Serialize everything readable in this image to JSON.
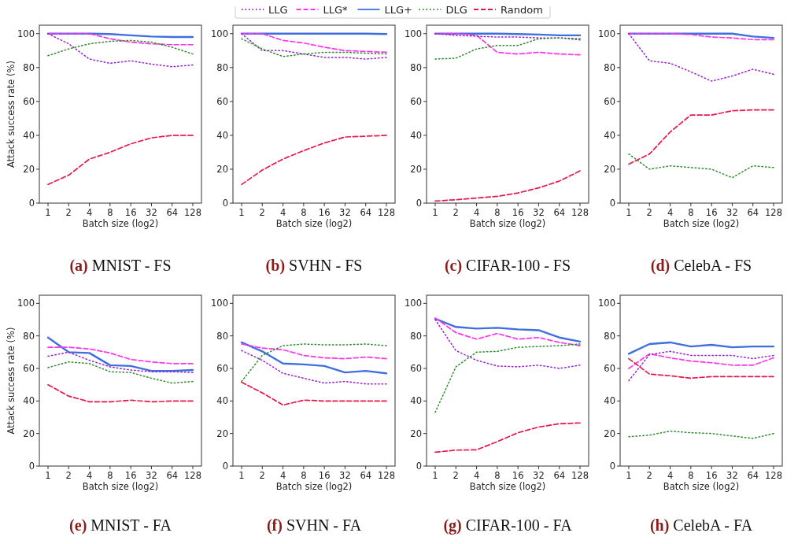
{
  "chart_data": [
    {
      "type": "line",
      "title": "(a) MNIST - FS",
      "xlabel": "Batch size (log2)",
      "ylabel": "Attack success rate (%)",
      "categories": [
        "1",
        "2",
        "4",
        "8",
        "16",
        "32",
        "64",
        "128"
      ],
      "ylim": [
        0,
        105
      ],
      "yticks": [
        0,
        20,
        40,
        60,
        80,
        100
      ],
      "legend": "top",
      "series": [
        {
          "name": "LLG",
          "color": "#9b1fd0",
          "line_style": "dotted",
          "values": [
            100,
            94,
            85,
            82.5,
            84,
            82,
            80.5,
            81.5
          ]
        },
        {
          "name": "LLG*",
          "color": "#ff33ee",
          "line_style": "dashed",
          "values": [
            100,
            100,
            100,
            97,
            95,
            94,
            93.5,
            93.5
          ]
        },
        {
          "name": "LLG+",
          "color": "#3f6fdf",
          "line_style": "solid",
          "values": [
            100,
            100,
            100,
            99.8,
            99,
            98.3,
            98,
            98
          ]
        },
        {
          "name": "DLG",
          "color": "#2e8b2e",
          "line_style": "dotted",
          "values": [
            87,
            91,
            94,
            95.5,
            96,
            95,
            92,
            88
          ]
        },
        {
          "name": "Random",
          "color": "#e8174a",
          "line_style": "dashed",
          "values": [
            11,
            16.5,
            26,
            30,
            35,
            38.5,
            40,
            40
          ]
        }
      ]
    },
    {
      "type": "line",
      "title": "(b) SVHN - FS",
      "xlabel": "Batch size (log2)",
      "categories": [
        "1",
        "2",
        "4",
        "8",
        "16",
        "32",
        "64",
        "128"
      ],
      "ylim": [
        0,
        105
      ],
      "yticks": [
        0,
        20,
        40,
        60,
        80,
        100
      ],
      "series": [
        {
          "name": "LLG",
          "color": "#9b1fd0",
          "line_style": "dotted",
          "values": [
            100,
            90,
            90,
            88,
            86,
            86,
            85,
            86
          ]
        },
        {
          "name": "LLG*",
          "color": "#ff33ee",
          "line_style": "dashed",
          "values": [
            100,
            100,
            96,
            94.5,
            92,
            90,
            89.5,
            89
          ]
        },
        {
          "name": "LLG+",
          "color": "#3f6fdf",
          "line_style": "solid",
          "values": [
            100,
            100,
            100,
            100,
            100,
            100,
            100,
            99.8
          ]
        },
        {
          "name": "DLG",
          "color": "#2e8b2e",
          "line_style": "dotted",
          "values": [
            97,
            91,
            86.5,
            88,
            89,
            89,
            88.5,
            88
          ]
        },
        {
          "name": "Random",
          "color": "#e8174a",
          "line_style": "dashed",
          "values": [
            11,
            19.5,
            26,
            31,
            35.5,
            39,
            39.5,
            40
          ]
        }
      ]
    },
    {
      "type": "line",
      "title": "(c) CIFAR-100 - FS",
      "xlabel": "Batch size (log2)",
      "categories": [
        "1",
        "2",
        "4",
        "8",
        "16",
        "32",
        "64",
        "128"
      ],
      "ylim": [
        0,
        105
      ],
      "yticks": [
        0,
        20,
        40,
        60,
        80,
        100
      ],
      "series": [
        {
          "name": "LLG",
          "color": "#9b1fd0",
          "line_style": "dotted",
          "values": [
            100,
            99,
            98.5,
            98,
            98,
            97.5,
            97.5,
            97
          ]
        },
        {
          "name": "LLG*",
          "color": "#ff33ee",
          "line_style": "dashed",
          "values": [
            100,
            100,
            99,
            89,
            88,
            89,
            88,
            87.5
          ]
        },
        {
          "name": "LLG+",
          "color": "#3f6fdf",
          "line_style": "solid",
          "values": [
            100,
            100,
            100,
            100,
            99.8,
            99.5,
            99,
            99
          ]
        },
        {
          "name": "DLG",
          "color": "#2e8b2e",
          "line_style": "dotted",
          "values": [
            85,
            85.5,
            91,
            93,
            93,
            97,
            97.5,
            96.3
          ]
        },
        {
          "name": "Random",
          "color": "#e8174a",
          "line_style": "dashed",
          "values": [
            1.2,
            2,
            3,
            4,
            6,
            9,
            13,
            19
          ]
        }
      ]
    },
    {
      "type": "line",
      "title": "(d) CelebA - FS",
      "xlabel": "Batch size (log2)",
      "categories": [
        "1",
        "2",
        "4",
        "8",
        "16",
        "32",
        "64",
        "128"
      ],
      "ylim": [
        0,
        105
      ],
      "yticks": [
        0,
        20,
        40,
        60,
        80,
        100
      ],
      "series": [
        {
          "name": "LLG",
          "color": "#9b1fd0",
          "line_style": "dotted",
          "values": [
            100,
            84,
            82.5,
            77.5,
            72,
            75,
            79,
            76
          ]
        },
        {
          "name": "LLG*",
          "color": "#ff33ee",
          "line_style": "dashed",
          "values": [
            100,
            100,
            100,
            99.5,
            98,
            97.5,
            96.5,
            96.5
          ]
        },
        {
          "name": "LLG+",
          "color": "#3f6fdf",
          "line_style": "solid",
          "values": [
            100,
            100,
            100,
            100,
            100,
            100,
            98.3,
            97.5
          ]
        },
        {
          "name": "DLG",
          "color": "#2e8b2e",
          "line_style": "dotted",
          "values": [
            29,
            20,
            22,
            21,
            20,
            15,
            22,
            21
          ]
        },
        {
          "name": "Random",
          "color": "#e8174a",
          "line_style": "dashed",
          "values": [
            23,
            29,
            42,
            52,
            52,
            54.5,
            55,
            55
          ]
        }
      ]
    },
    {
      "type": "line",
      "title": "(e) MNIST - FA",
      "xlabel": "Batch size (log2)",
      "ylabel": "Attack success rate (%)",
      "categories": [
        "1",
        "2",
        "4",
        "8",
        "16",
        "32",
        "64",
        "128"
      ],
      "ylim": [
        0,
        105
      ],
      "yticks": [
        0,
        20,
        40,
        60,
        80,
        100
      ],
      "series": [
        {
          "name": "LLG",
          "color": "#9b1fd0",
          "line_style": "dotted",
          "values": [
            67.5,
            70,
            65,
            61,
            59,
            58,
            58,
            57.5
          ]
        },
        {
          "name": "LLG*",
          "color": "#ff33ee",
          "line_style": "dashed",
          "values": [
            73,
            73,
            72,
            69.5,
            65.5,
            64,
            63,
            63
          ]
        },
        {
          "name": "LLG+",
          "color": "#3f6fdf",
          "line_style": "solid",
          "values": [
            79,
            70,
            69.5,
            62,
            61.5,
            58.5,
            58.5,
            59
          ]
        },
        {
          "name": "DLG",
          "color": "#2e8b2e",
          "line_style": "dotted",
          "values": [
            60.5,
            64,
            63,
            58,
            57.5,
            54,
            51,
            52
          ]
        },
        {
          "name": "Random",
          "color": "#e8174a",
          "line_style": "dashed",
          "values": [
            50,
            43,
            39.5,
            39.5,
            40.5,
            39.5,
            40,
            40
          ]
        }
      ]
    },
    {
      "type": "line",
      "title": "(f) SVHN - FA",
      "xlabel": "Batch size (log2)",
      "categories": [
        "1",
        "2",
        "4",
        "8",
        "16",
        "32",
        "64",
        "128"
      ],
      "ylim": [
        0,
        105
      ],
      "yticks": [
        0,
        20,
        40,
        60,
        80,
        100
      ],
      "series": [
        {
          "name": "LLG",
          "color": "#9b1fd0",
          "line_style": "dotted",
          "values": [
            71,
            65,
            57,
            54,
            51,
            52,
            50.5,
            50.5
          ]
        },
        {
          "name": "LLG*",
          "color": "#ff33ee",
          "line_style": "dashed",
          "values": [
            75,
            72.5,
            71.5,
            68,
            66.5,
            66,
            67,
            66
          ]
        },
        {
          "name": "LLG+",
          "color": "#3f6fdf",
          "line_style": "solid",
          "values": [
            76,
            70.5,
            63,
            62.5,
            61.5,
            57.5,
            58.5,
            57
          ]
        },
        {
          "name": "DLG",
          "color": "#2e8b2e",
          "line_style": "dotted",
          "values": [
            52,
            68,
            74,
            75,
            74.5,
            74.5,
            75,
            74
          ]
        },
        {
          "name": "Random",
          "color": "#e8174a",
          "line_style": "dashed",
          "values": [
            51.5,
            45,
            37.5,
            40.5,
            40,
            40,
            40,
            40
          ]
        }
      ]
    },
    {
      "type": "line",
      "title": "(g) CIFAR-100 - FA",
      "xlabel": "Batch size (log2)",
      "categories": [
        "1",
        "2",
        "4",
        "8",
        "16",
        "32",
        "64",
        "128"
      ],
      "ylim": [
        0,
        105
      ],
      "yticks": [
        0,
        20,
        40,
        60,
        80,
        100
      ],
      "series": [
        {
          "name": "LLG",
          "color": "#9b1fd0",
          "line_style": "dotted",
          "values": [
            90,
            71,
            65,
            61.5,
            61,
            62,
            60,
            62
          ]
        },
        {
          "name": "LLG*",
          "color": "#ff33ee",
          "line_style": "dashed",
          "values": [
            91,
            82,
            78,
            81.5,
            78,
            79,
            76,
            74
          ]
        },
        {
          "name": "LLG+",
          "color": "#3f6fdf",
          "line_style": "solid",
          "values": [
            90.5,
            85.5,
            84.5,
            85,
            84,
            83.5,
            79,
            76.5
          ]
        },
        {
          "name": "DLG",
          "color": "#2e8b2e",
          "line_style": "dotted",
          "values": [
            33,
            61,
            70,
            70.5,
            73,
            73.5,
            74,
            75
          ]
        },
        {
          "name": "Random",
          "color": "#e8174a",
          "line_style": "dashed",
          "values": [
            8.5,
            9.8,
            10,
            15,
            20.5,
            24,
            26,
            26.5
          ]
        }
      ]
    },
    {
      "type": "line",
      "title": "(h) CelebA - FA",
      "xlabel": "Batch size (log2)",
      "categories": [
        "1",
        "2",
        "4",
        "8",
        "16",
        "32",
        "64",
        "128"
      ],
      "ylim": [
        0,
        105
      ],
      "yticks": [
        0,
        20,
        40,
        60,
        80,
        100
      ],
      "series": [
        {
          "name": "LLG",
          "color": "#9b1fd0",
          "line_style": "dotted",
          "values": [
            52.5,
            68.5,
            70.5,
            68,
            68,
            68,
            66,
            68
          ]
        },
        {
          "name": "LLG*",
          "color": "#ff33ee",
          "line_style": "dashed",
          "values": [
            60,
            69,
            66.5,
            64.5,
            63.5,
            62,
            62,
            66.5
          ]
        },
        {
          "name": "LLG+",
          "color": "#3f6fdf",
          "line_style": "solid",
          "values": [
            69,
            75,
            76,
            73.5,
            74.5,
            73,
            73.5,
            73.5
          ]
        },
        {
          "name": "DLG",
          "color": "#2e8b2e",
          "line_style": "dotted",
          "values": [
            18,
            19,
            21.5,
            20.5,
            20,
            18.5,
            17,
            20
          ]
        },
        {
          "name": "Random",
          "color": "#e8174a",
          "line_style": "dashed",
          "values": [
            66,
            56.5,
            55.5,
            54,
            55,
            55,
            55,
            55
          ]
        }
      ]
    }
  ]
}
